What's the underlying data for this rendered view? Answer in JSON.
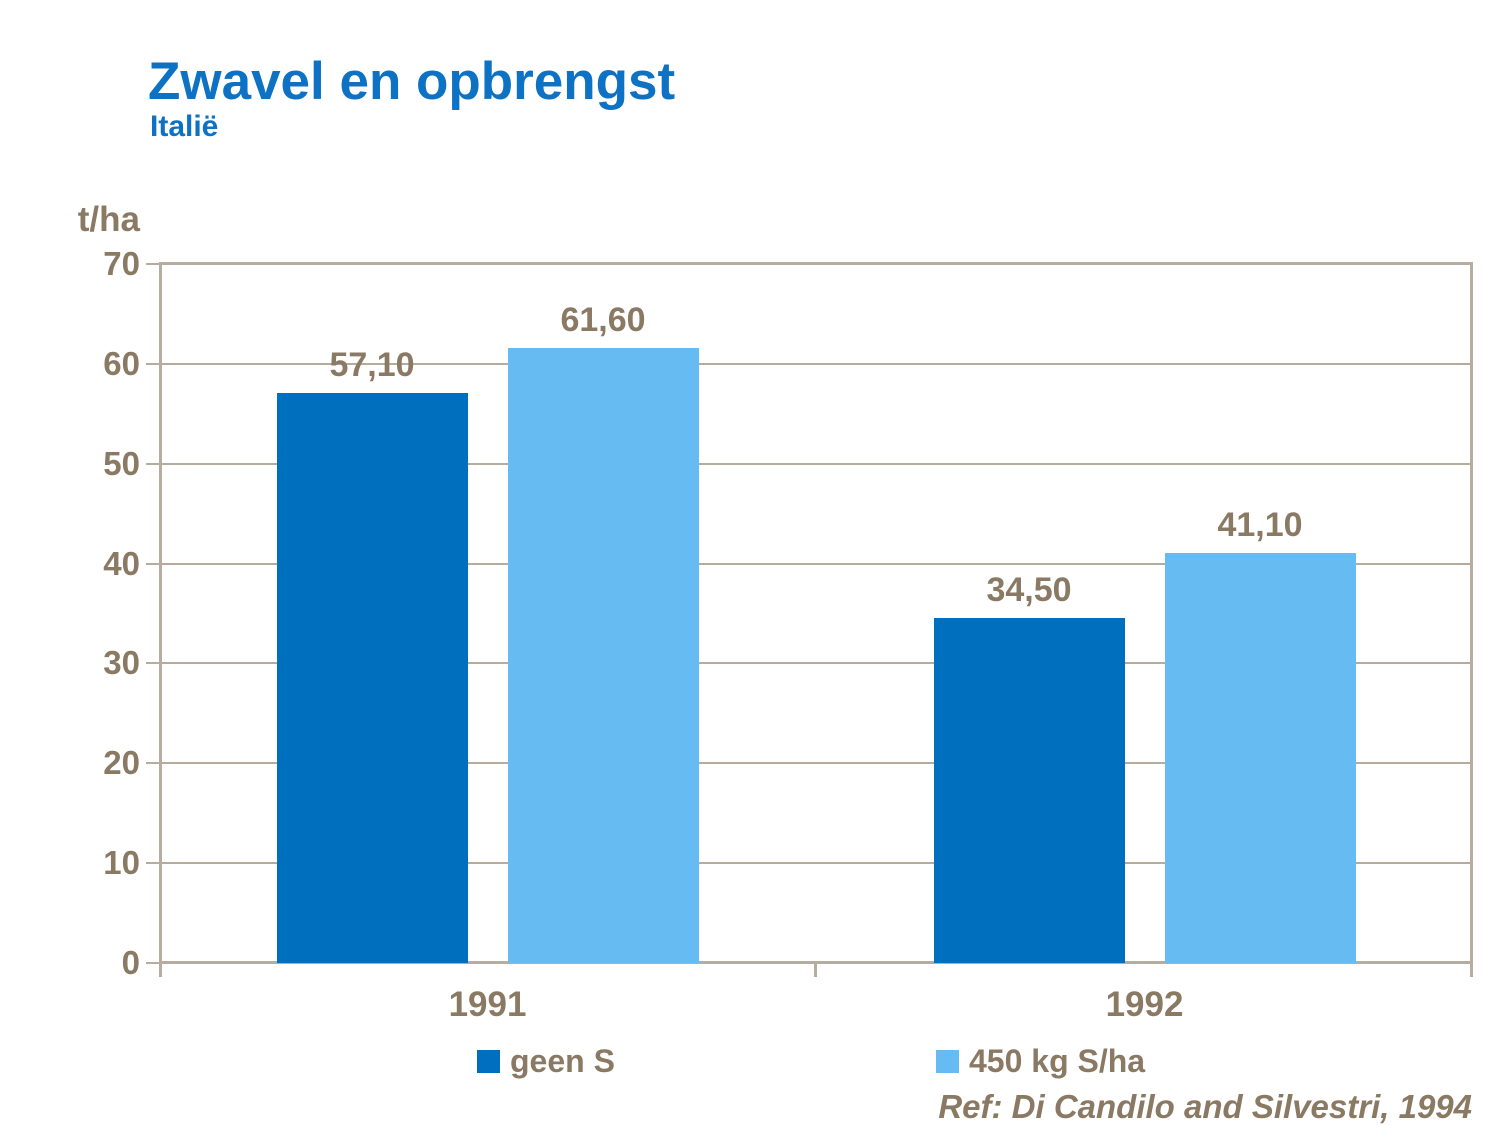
{
  "slide": {
    "title": "Zwavel en opbrengst",
    "subtitle": "Italië",
    "reference": "Ref: Di Candilo and Silvestri, 1994"
  },
  "chart_data": {
    "type": "bar",
    "title": "Zwavel en opbrengst",
    "subtitle": "Italië",
    "ylabel": "t/ha",
    "xlabel": "",
    "ylim": [
      0,
      70
    ],
    "ytick_interval": 10,
    "yticks": [
      "0",
      "10",
      "20",
      "30",
      "40",
      "50",
      "60",
      "70"
    ],
    "grid": true,
    "legend_position": "bottom",
    "categories": [
      "1991",
      "1992"
    ],
    "series": [
      {
        "name": "geen S",
        "color": "#0070be",
        "values": [
          57.1,
          34.5
        ],
        "value_labels": [
          "57,10",
          "34,50"
        ]
      },
      {
        "name": "450 kg S/ha",
        "color": "#66bbf3",
        "values": [
          61.6,
          41.1
        ],
        "value_labels": [
          "61,60",
          "41,10"
        ]
      }
    ],
    "annotation": "Ref: Di Candilo and Silvestri, 1994"
  },
  "colors": {
    "title_blue": "#0d72c4",
    "axis_text_brown": "#8a7963",
    "frame_tan": "#b7aca0",
    "gridline_tan": "#b5ac9e",
    "series_dark_blue": "#0070be",
    "series_light_blue": "#66bbf3",
    "background": "#ffffff"
  }
}
